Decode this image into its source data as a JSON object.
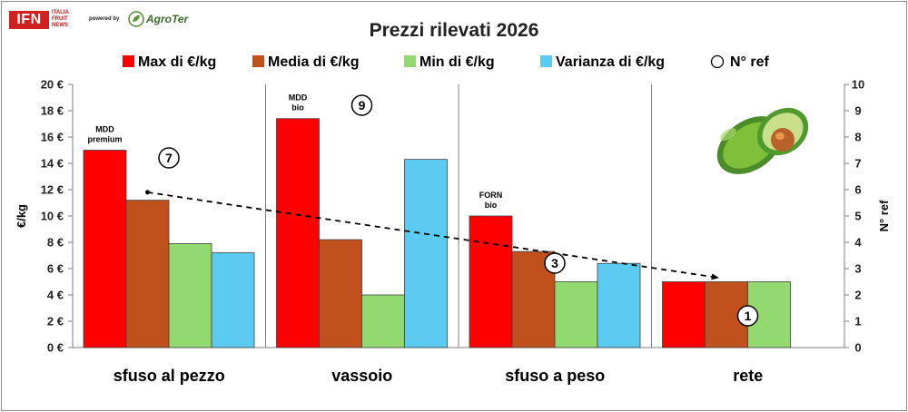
{
  "brand": {
    "logo_text": "IFN",
    "logo_sub": [
      "ITALIA",
      "FRUIT",
      "NEWS"
    ],
    "powered_by": "powered by",
    "partner": "AgroTer"
  },
  "icons": {
    "decoration": "avocado-icon",
    "partner_mark": "agroter-leaf-icon"
  },
  "chart_data": {
    "type": "bar",
    "title": "Prezzi rilevati 2026",
    "categories": [
      "sfuso al pezzo",
      "vassoio",
      "sfuso a peso",
      "rete"
    ],
    "series": [
      {
        "name": "Max di €/kg",
        "color": "#ff0000",
        "values": [
          15.0,
          17.4,
          10.0,
          5.0
        ]
      },
      {
        "name": "Media di €/kg",
        "color": "#c0501c",
        "values": [
          11.2,
          8.2,
          7.3,
          5.0
        ]
      },
      {
        "name": "Min di €/kg",
        "color": "#92d970",
        "values": [
          7.9,
          4.0,
          5.0,
          5.0
        ]
      },
      {
        "name": "Varianza di €/kg",
        "color": "#5bcbf2",
        "values": [
          7.2,
          14.3,
          6.4,
          null
        ]
      }
    ],
    "ref_series": {
      "name": "N° ref",
      "values": [
        7,
        9,
        3,
        1
      ]
    },
    "ylabel": "€/kg",
    "ylim": [
      0,
      20
    ],
    "yticks": [
      "0 €",
      "2 €",
      "4 €",
      "6 €",
      "8 €",
      "10 €",
      "12 €",
      "14 €",
      "16 €",
      "18 €",
      "20 €"
    ],
    "y2label": "N° ref",
    "y2lim": [
      0,
      10
    ],
    "y2ticks": [
      "0",
      "1",
      "2",
      "3",
      "4",
      "5",
      "6",
      "7",
      "8",
      "9",
      "10"
    ],
    "annotations": [
      {
        "category_index": 0,
        "lines": [
          "MDD",
          "premium"
        ]
      },
      {
        "category_index": 1,
        "lines": [
          "MDD",
          "bio"
        ]
      },
      {
        "category_index": 2,
        "lines": [
          "FORN",
          "bio"
        ]
      }
    ],
    "trendline": {
      "style": "dashed",
      "from_category": 0,
      "to_category": 3,
      "from_value": 11.8,
      "to_value": 5.3
    },
    "grid": false,
    "legend_position": "top"
  }
}
